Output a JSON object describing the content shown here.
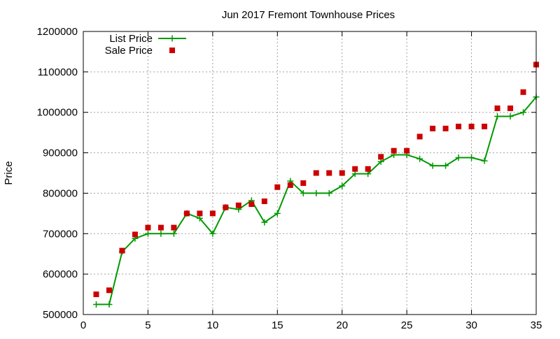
{
  "chart_data": {
    "type": "scatter",
    "title": "Jun 2017 Fremont Townhouse Prices",
    "xlabel": "",
    "ylabel": "Price",
    "xlim": [
      0,
      35
    ],
    "ylim": [
      500000,
      1200000
    ],
    "xticks": [
      0,
      5,
      10,
      15,
      20,
      25,
      30,
      35
    ],
    "yticks": [
      500000,
      600000,
      700000,
      800000,
      900000,
      1000000,
      1100000,
      1200000
    ],
    "grid": true,
    "legend_position": "top-left",
    "series": [
      {
        "name": "List Price",
        "style": "line-with-plus-markers",
        "color": "#009900",
        "x": [
          1,
          2,
          3,
          4,
          5,
          6,
          7,
          8,
          9,
          10,
          11,
          12,
          13,
          14,
          15,
          16,
          17,
          18,
          19,
          20,
          21,
          22,
          23,
          24,
          25,
          26,
          27,
          28,
          29,
          30,
          31,
          32,
          33,
          34,
          35
        ],
        "values": [
          525000,
          525000,
          655000,
          688000,
          700000,
          700000,
          700000,
          750000,
          738000,
          700000,
          765000,
          760000,
          782000,
          728000,
          750000,
          830000,
          800000,
          800000,
          800000,
          818000,
          848000,
          848000,
          878000,
          895000,
          895000,
          885000,
          868000,
          868000,
          888000,
          888000,
          880000,
          990000,
          990000,
          1000000,
          1038000
        ]
      },
      {
        "name": "Sale Price",
        "style": "square-markers",
        "color": "#cc0000",
        "x": [
          1,
          2,
          3,
          4,
          5,
          6,
          7,
          8,
          9,
          10,
          11,
          12,
          13,
          14,
          15,
          16,
          17,
          18,
          19,
          20,
          21,
          22,
          23,
          24,
          25,
          26,
          27,
          28,
          29,
          30,
          31,
          32,
          33,
          34,
          35
        ],
        "values": [
          550000,
          560000,
          658000,
          698000,
          715000,
          715000,
          715000,
          750000,
          750000,
          750000,
          765000,
          770000,
          773000,
          780000,
          815000,
          820000,
          825000,
          850000,
          850000,
          850000,
          860000,
          860000,
          890000,
          905000,
          905000,
          940000,
          960000,
          960000,
          965000,
          965000,
          965000,
          1010000,
          1010000,
          1050000,
          1118000
        ]
      }
    ]
  }
}
